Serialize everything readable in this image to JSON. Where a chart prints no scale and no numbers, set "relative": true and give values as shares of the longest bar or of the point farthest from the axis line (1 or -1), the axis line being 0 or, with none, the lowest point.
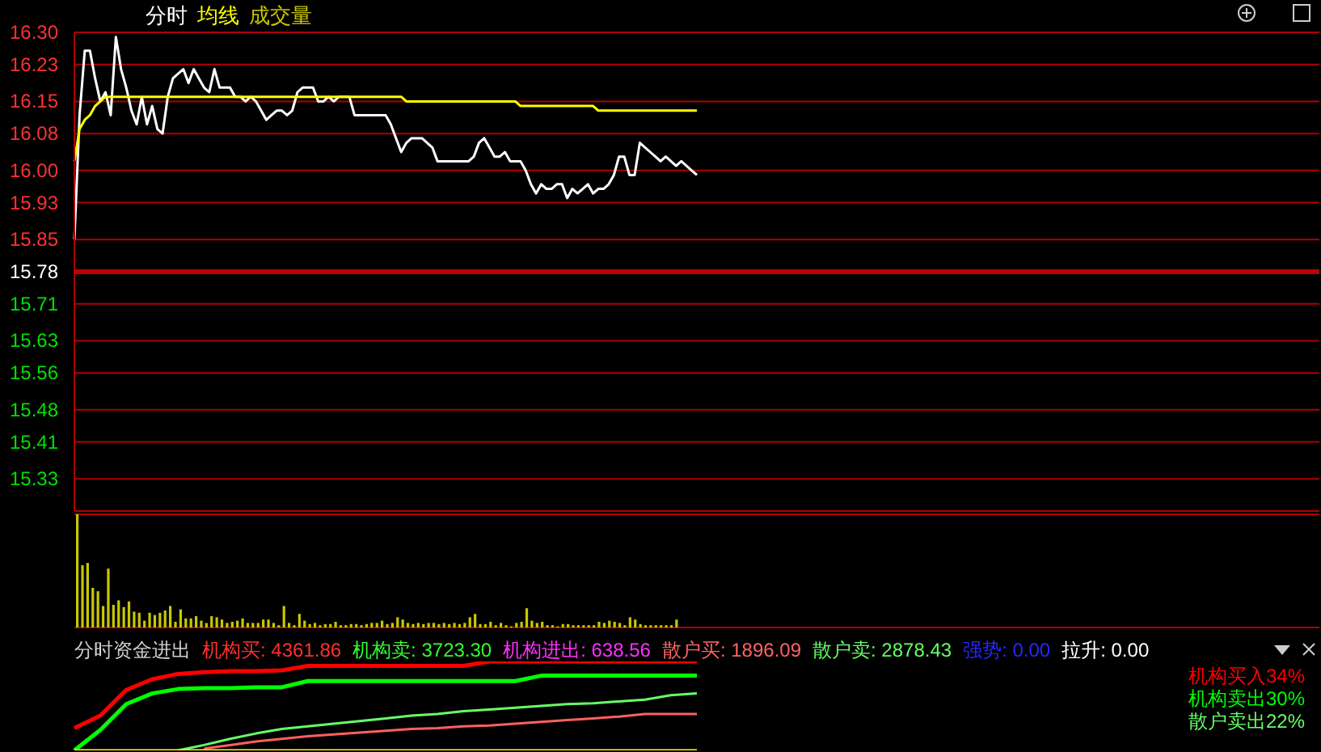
{
  "chart_data": [
    {
      "type": "line",
      "categories": [
        null,
        null,
        null,
        null,
        null,
        null,
        null,
        null,
        null,
        null,
        null,
        null,
        null,
        null,
        null,
        null,
        null,
        null,
        null,
        null,
        null,
        null,
        null,
        null,
        null,
        null,
        null,
        null,
        null,
        null,
        null,
        null,
        null,
        null,
        null,
        null,
        null,
        null,
        null,
        null,
        null,
        null,
        null,
        null,
        null,
        null,
        null,
        null,
        null,
        null,
        null,
        null,
        null,
        null,
        null,
        null,
        null,
        null,
        null,
        null,
        null,
        null,
        null,
        null,
        null,
        null,
        null,
        null,
        null,
        null,
        null,
        null,
        null,
        null,
        null,
        null,
        null,
        null,
        null,
        null,
        null,
        null,
        null,
        null,
        null,
        null,
        null,
        null,
        null,
        null,
        null,
        null,
        null,
        null,
        null,
        null,
        null,
        null,
        null,
        null,
        null,
        null,
        null,
        null,
        null,
        null,
        null,
        null,
        null,
        null,
        null,
        null,
        null,
        null,
        null,
        null,
        null,
        null,
        null,
        null,
        null,
        null,
        null,
        null,
        null,
        null,
        null,
        null,
        null,
        null,
        null,
        null,
        null,
        null,
        null,
        null,
        null,
        null,
        null,
        null,
        null,
        null,
        null,
        null,
        null,
        null,
        null,
        null,
        null,
        null,
        null,
        null,
        null,
        null,
        null,
        null,
        null,
        null,
        null,
        null,
        null,
        null,
        null,
        null,
        null,
        null,
        null,
        null,
        null,
        null,
        null,
        null,
        null,
        null,
        null,
        null,
        null,
        null,
        null,
        null,
        null,
        null,
        null,
        null,
        null,
        null,
        null,
        null,
        null,
        null,
        null,
        null,
        null,
        null,
        null,
        null,
        null,
        null,
        null,
        null,
        null,
        null,
        null,
        null,
        null,
        null,
        null,
        null,
        null,
        null,
        null,
        null,
        null,
        null,
        null,
        null,
        null,
        null,
        null,
        null,
        null,
        null,
        null,
        null,
        null,
        null,
        null,
        null,
        null,
        null,
        null,
        null,
        null,
        null,
        null,
        null,
        null,
        null,
        null,
        null,
        null
      ],
      "ylim": [
        15.26,
        16.3
      ],
      "yticks": [
        {
          "value": 16.3,
          "label": "16.30"
        },
        16.23,
        16.15,
        16.08,
        {
          "value": 16.0,
          "label": "16.00"
        },
        15.93,
        15.85,
        15.78,
        15.71,
        15.63,
        15.56,
        15.48,
        15.41,
        15.33
      ],
      "tick_labels": "y",
      "grid": "y",
      "ref_lines": [
        {
          "axis": "y",
          "value": 15.78,
          "color": "#c00000"
        }
      ],
      "series": [
        {
          "name": "分时",
          "color": "#ffffff",
          "values": [
            15.85,
            16.12,
            16.26,
            16.26,
            16.2,
            16.15,
            16.17,
            16.12,
            16.29,
            16.22,
            16.18,
            16.13,
            16.1,
            16.16,
            16.1,
            16.14,
            16.09,
            16.08,
            16.16,
            16.2,
            16.21,
            16.22,
            16.19,
            16.22,
            16.2,
            16.18,
            16.17,
            16.22,
            16.18,
            16.18,
            16.18,
            16.16,
            16.16,
            16.15,
            16.16,
            16.15,
            16.13,
            16.11,
            16.12,
            16.13,
            16.13,
            16.12,
            16.13,
            16.17,
            16.18,
            16.18,
            16.18,
            16.15,
            16.15,
            16.16,
            16.15,
            16.16,
            16.16,
            16.16,
            16.12,
            16.12,
            16.12,
            16.12,
            16.12,
            16.12,
            16.12,
            16.1,
            16.07,
            16.04,
            16.06,
            16.07,
            16.07,
            16.07,
            16.06,
            16.05,
            16.02,
            16.02,
            16.02,
            16.02,
            16.02,
            16.02,
            16.02,
            16.03,
            16.06,
            16.07,
            16.05,
            16.03,
            16.03,
            16.04,
            16.02,
            16.02,
            16.02,
            16.0,
            15.97,
            15.95,
            15.97,
            15.96,
            15.96,
            15.97,
            15.97,
            15.94,
            15.96,
            15.95,
            15.96,
            15.97,
            15.95,
            15.96,
            15.96,
            15.97,
            15.99,
            16.03,
            16.03,
            15.99,
            15.99,
            16.06,
            16.05,
            16.04,
            16.03,
            16.02,
            16.03,
            16.02,
            16.01,
            16.02,
            16.01,
            16.0,
            15.99,
            null,
            null,
            null,
            null,
            null,
            null,
            null,
            null,
            null,
            null,
            null,
            null,
            null,
            null,
            null,
            null,
            null,
            null,
            null,
            null,
            null,
            null,
            null,
            null,
            null,
            null,
            null,
            null,
            null,
            null,
            null,
            null,
            null,
            null,
            null,
            null,
            null,
            null,
            null,
            null,
            null,
            null,
            null,
            null,
            null,
            null,
            null,
            null,
            null,
            null,
            null,
            null,
            null,
            null,
            null,
            null,
            null,
            null,
            null,
            null,
            null,
            null,
            null,
            null,
            null,
            null,
            null,
            null,
            null,
            null,
            null,
            null,
            null,
            null,
            null,
            null,
            null,
            null,
            null,
            null,
            null,
            null,
            null,
            null,
            null,
            null,
            null,
            null,
            null,
            null,
            null,
            null,
            null,
            null,
            null,
            null,
            null,
            null,
            null,
            null,
            null,
            null,
            null,
            null,
            null,
            null,
            null,
            null,
            null,
            null,
            null,
            null,
            null,
            null,
            null,
            null,
            null,
            null,
            null,
            null
          ]
        },
        {
          "name": "均线",
          "color": "#ffff00",
          "values": [
            16.02,
            16.09,
            16.11,
            16.12,
            16.14,
            16.15,
            16.16,
            16.16,
            16.16,
            16.16,
            16.16,
            16.16,
            16.16,
            16.16,
            16.16,
            16.16,
            16.16,
            16.16,
            16.16,
            16.16,
            16.16,
            16.16,
            16.16,
            16.16,
            16.16,
            16.16,
            16.16,
            16.16,
            16.16,
            16.16,
            16.16,
            16.16,
            16.16,
            16.16,
            16.16,
            16.16,
            16.16,
            16.16,
            16.16,
            16.16,
            16.16,
            16.16,
            16.16,
            16.16,
            16.16,
            16.16,
            16.16,
            16.16,
            16.16,
            16.16,
            16.16,
            16.16,
            16.16,
            16.16,
            16.16,
            16.16,
            16.16,
            16.16,
            16.16,
            16.16,
            16.16,
            16.16,
            16.16,
            16.16,
            16.15,
            16.15,
            16.15,
            16.15,
            16.15,
            16.15,
            16.15,
            16.15,
            16.15,
            16.15,
            16.15,
            16.15,
            16.15,
            16.15,
            16.15,
            16.15,
            16.15,
            16.15,
            16.15,
            16.15,
            16.15,
            16.15,
            16.14,
            16.14,
            16.14,
            16.14,
            16.14,
            16.14,
            16.14,
            16.14,
            16.14,
            16.14,
            16.14,
            16.14,
            16.14,
            16.14,
            16.14,
            16.13,
            16.13,
            16.13,
            16.13,
            16.13,
            16.13,
            16.13,
            16.13,
            16.13,
            16.13,
            16.13,
            16.13,
            16.13,
            16.13,
            16.13,
            16.13,
            16.13,
            16.13,
            16.13,
            16.13,
            null,
            null,
            null,
            null,
            null,
            null,
            null,
            null,
            null,
            null,
            null,
            null,
            null,
            null,
            null,
            null,
            null,
            null,
            null,
            null,
            null,
            null,
            null,
            null,
            null,
            null,
            null,
            null,
            null,
            null,
            null,
            null,
            null,
            null,
            null,
            null,
            null,
            null,
            null,
            null,
            null,
            null,
            null,
            null,
            null,
            null,
            null,
            null,
            null,
            null,
            null,
            null,
            null,
            null,
            null,
            null,
            null,
            null,
            null,
            null,
            null,
            null,
            null,
            null,
            null,
            null,
            null,
            null,
            null,
            null,
            null,
            null,
            null,
            null,
            null,
            null,
            null,
            null,
            null,
            null,
            null,
            null,
            null,
            null,
            null,
            null,
            null,
            null,
            null,
            null,
            null,
            null,
            null,
            null,
            null,
            null,
            null,
            null,
            null,
            null,
            null,
            null,
            null,
            null,
            null,
            null,
            null,
            null,
            null,
            null,
            null,
            null,
            null,
            null,
            null,
            null,
            null,
            null,
            null,
            null
          ]
        }
      ]
    },
    {
      "type": "bar",
      "relative": true,
      "categories": [
        null,
        null,
        null,
        null,
        null,
        null,
        null,
        null,
        null,
        null,
        null,
        null,
        null,
        null,
        null,
        null,
        null,
        null,
        null,
        null,
        null,
        null,
        null,
        null,
        null,
        null,
        null,
        null,
        null,
        null,
        null,
        null,
        null,
        null,
        null,
        null,
        null,
        null,
        null,
        null,
        null,
        null,
        null,
        null,
        null,
        null,
        null,
        null,
        null,
        null,
        null,
        null,
        null,
        null,
        null,
        null,
        null,
        null,
        null,
        null,
        null,
        null,
        null,
        null,
        null,
        null,
        null,
        null,
        null,
        null,
        null,
        null,
        null,
        null,
        null,
        null,
        null,
        null,
        null,
        null,
        null,
        null,
        null,
        null,
        null,
        null,
        null,
        null,
        null,
        null,
        null,
        null,
        null,
        null,
        null,
        null,
        null,
        null,
        null,
        null,
        null,
        null,
        null,
        null,
        null,
        null,
        null,
        null,
        null,
        null,
        null,
        null,
        null,
        null,
        null,
        null,
        null,
        null,
        null,
        null,
        null,
        null,
        null,
        null,
        null,
        null,
        null,
        null,
        null,
        null,
        null,
        null,
        null,
        null,
        null,
        null,
        null,
        null,
        null,
        null,
        null,
        null,
        null,
        null,
        null,
        null,
        null,
        null,
        null,
        null,
        null,
        null,
        null,
        null,
        null,
        null,
        null,
        null,
        null,
        null,
        null,
        null,
        null,
        null,
        null,
        null,
        null,
        null,
        null,
        null,
        null,
        null,
        null,
        null,
        null,
        null,
        null,
        null,
        null,
        null,
        null,
        null,
        null,
        null,
        null,
        null,
        null,
        null,
        null,
        null,
        null,
        null,
        null,
        null,
        null,
        null,
        null,
        null,
        null,
        null,
        null,
        null,
        null,
        null,
        null,
        null,
        null,
        null,
        null,
        null,
        null,
        null,
        null,
        null,
        null,
        null,
        null,
        null,
        null,
        null,
        null,
        null,
        null,
        null,
        null,
        null,
        null,
        null,
        null,
        null,
        null,
        null,
        null,
        null,
        null,
        null,
        null,
        null,
        null,
        null,
        null
      ],
      "tick_labels": false,
      "series": [
        {
          "name": "成交量",
          "color": "#c8c800",
          "values": [
            1,
            0.55,
            0.57,
            0.35,
            0.32,
            0.19,
            0.52,
            0.2,
            0.24,
            0.18,
            0.23,
            0.14,
            0.13,
            0.06,
            0.13,
            0.11,
            0.13,
            0.15,
            0.19,
            0.05,
            0.16,
            0.08,
            0.08,
            0.1,
            0.06,
            0.04,
            0.1,
            0.09,
            0.07,
            0.04,
            0.05,
            0.06,
            0.08,
            0.04,
            0.04,
            0.04,
            0.07,
            0.07,
            0.04,
            0.02,
            0.19,
            0.04,
            0.02,
            0.12,
            0.06,
            0.03,
            0.04,
            0.02,
            0.03,
            0.03,
            0.05,
            0.02,
            0.02,
            0.03,
            0.03,
            0.02,
            0.03,
            0.04,
            0.04,
            0.06,
            0.03,
            0.04,
            0.09,
            0.07,
            0.04,
            0.03,
            0.04,
            0.03,
            0.04,
            0.04,
            0.03,
            0.04,
            0.03,
            0.04,
            0.03,
            0.04,
            0.09,
            0.12,
            0.03,
            0.03,
            0.05,
            0.02,
            0.04,
            0.02,
            0.01,
            0.04,
            0.05,
            0.17,
            0.06,
            0.04,
            0.05,
            0.02,
            0.02,
            0.01,
            0.03,
            0.03,
            0.02,
            0.02,
            0.02,
            0.02,
            0.02,
            0.05,
            0.04,
            0.06,
            0.05,
            0.04,
            0.02,
            0.09,
            0.07,
            0.03,
            0.02,
            0.02,
            0.02,
            0.02,
            0.02,
            0.02,
            0.07,
            null,
            null,
            null,
            null,
            null,
            null,
            null,
            null,
            null,
            null,
            null,
            null,
            null,
            null,
            null,
            null,
            null,
            null,
            null,
            null,
            null,
            null,
            null,
            null,
            null,
            null,
            null,
            null,
            null,
            null,
            null,
            null,
            null,
            null,
            null,
            null,
            null,
            null,
            null,
            null,
            null,
            null,
            null,
            null,
            null,
            null,
            null,
            null,
            null,
            null,
            null,
            null,
            null,
            null,
            null,
            null,
            null,
            null,
            null,
            null,
            null,
            null,
            null,
            null,
            null,
            null,
            null,
            null,
            null,
            null,
            null,
            null,
            null,
            null,
            null,
            null,
            null,
            null,
            null,
            null,
            null,
            null,
            null,
            null,
            null,
            null,
            null,
            null,
            null,
            null,
            null,
            null,
            null,
            null,
            null,
            null,
            null,
            null,
            null,
            null,
            null,
            null,
            null,
            null,
            null,
            null,
            null,
            null,
            null,
            null,
            null,
            null,
            null,
            null,
            null,
            null,
            null,
            null,
            null,
            null,
            null,
            null,
            null,
            null
          ]
        }
      ]
    },
    {
      "type": "line",
      "relative": true,
      "title": "分时资金进出",
      "categories": [
        null,
        null,
        null,
        null,
        null,
        null,
        null,
        null,
        null,
        null,
        null,
        null,
        null,
        null,
        null,
        null,
        null,
        null,
        null,
        null,
        null,
        null,
        null,
        null,
        null,
        null,
        null,
        null,
        null,
        null,
        null,
        null,
        null,
        null,
        null,
        null,
        null,
        null,
        null,
        null,
        null,
        null,
        null,
        null,
        null,
        null,
        null,
        null,
        null
      ],
      "tick_labels": false,
      "annotations": [
        "机构买: 4361.86",
        "机构卖: 3723.30",
        "机构进出: 638.56",
        "散户买: 1896.09",
        "散户卖: 2878.43",
        "强势: 0.00",
        "拉升: 0.00"
      ],
      "series": [
        {
          "name": "机构买入34%",
          "color": "#ff0000",
          "values": [
            0.25,
            0.39,
            0.68,
            0.8,
            0.86,
            0.88,
            0.89,
            0.89,
            0.9,
            0.95,
            0.95,
            0.95,
            0.95,
            0.95,
            0.95,
            0.95,
            1,
            1,
            1,
            1,
            1,
            1,
            1,
            1,
            1,
            null,
            null,
            null,
            null,
            null,
            null,
            null,
            null,
            null,
            null,
            null,
            null,
            null,
            null,
            null,
            null,
            null,
            null,
            null,
            null,
            null,
            null,
            null,
            null
          ]
        },
        {
          "name": "机构卖出30%",
          "color": "#00ff00",
          "values": [
            0,
            0.23,
            0.52,
            0.64,
            0.69,
            0.7,
            0.7,
            0.71,
            0.71,
            0.78,
            0.78,
            0.78,
            0.78,
            0.78,
            0.78,
            0.78,
            0.78,
            0.78,
            0.84,
            0.84,
            0.84,
            0.84,
            0.84,
            0.84,
            0.84,
            null,
            null,
            null,
            null,
            null,
            null,
            null,
            null,
            null,
            null,
            null,
            null,
            null,
            null,
            null,
            null,
            null,
            null,
            null,
            null,
            null,
            null,
            null,
            null
          ]
        },
        {
          "name": "散户卖出22%",
          "color": "#66ff66",
          "values": [
            null,
            null,
            null,
            null,
            0,
            0.06,
            0.13,
            0.19,
            0.24,
            0.27,
            0.3,
            0.33,
            0.36,
            0.39,
            0.41,
            0.44,
            0.46,
            0.48,
            0.5,
            0.52,
            0.53,
            0.55,
            0.57,
            0.62,
            0.64,
            null,
            null,
            null,
            null,
            null,
            null,
            null,
            null,
            null,
            null,
            null,
            null,
            null,
            null,
            null,
            null,
            null,
            null,
            null,
            null,
            null,
            null,
            null,
            null
          ]
        },
        {
          "color": "#ff6060",
          "values": [
            null,
            null,
            null,
            null,
            null,
            0.02,
            0.06,
            0.1,
            0.13,
            0.16,
            0.18,
            0.2,
            0.22,
            0.24,
            0.25,
            0.27,
            0.28,
            0.3,
            0.32,
            0.34,
            0.36,
            0.38,
            0.41,
            0.41,
            0.41,
            null,
            null,
            null,
            null,
            null,
            null,
            null,
            null,
            null,
            null,
            null,
            null,
            null,
            null,
            null,
            null,
            null,
            null,
            null,
            null,
            null,
            null,
            null,
            null
          ]
        },
        {
          "color": "#ffff00",
          "values": [
            0,
            0,
            0,
            0,
            0,
            0,
            0,
            0,
            0,
            0,
            0,
            0,
            0,
            0,
            0,
            0,
            0,
            0,
            0,
            0,
            0,
            0,
            0,
            0,
            0,
            null,
            null,
            null,
            null,
            null,
            null,
            null,
            null,
            null,
            null,
            null,
            null,
            null,
            null,
            null,
            null,
            null,
            null,
            null,
            null,
            null,
            null,
            null,
            null
          ]
        }
      ]
    }
  ]
}
